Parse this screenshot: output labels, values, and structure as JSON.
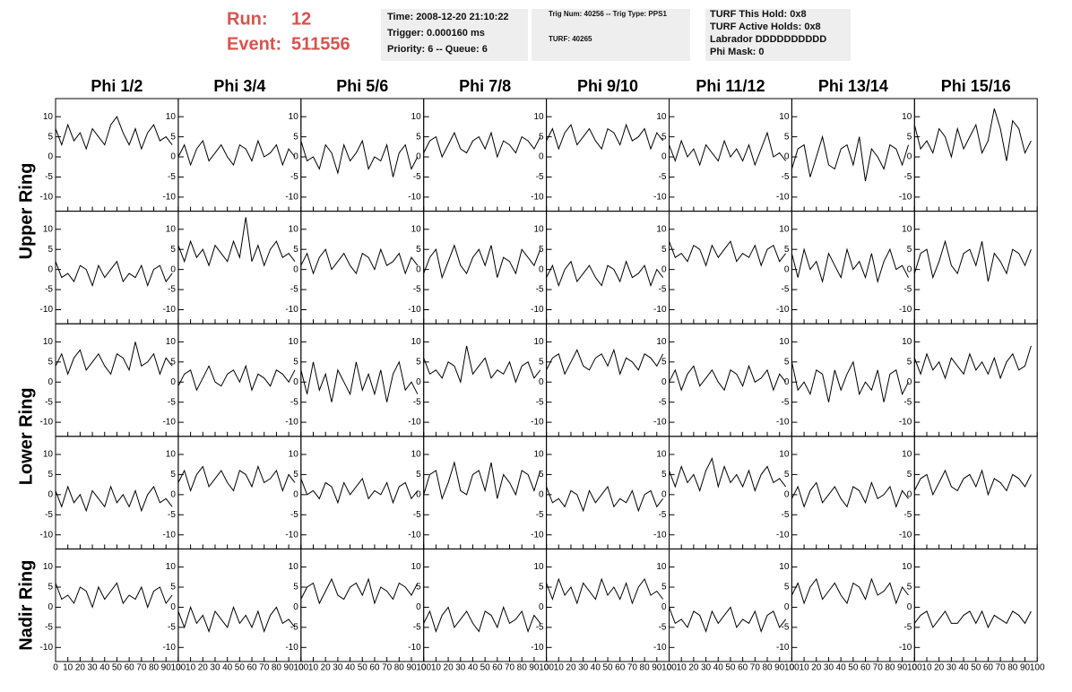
{
  "header": {
    "run_label": "Run:",
    "run": 12,
    "event_label": "Event:",
    "event": 511556,
    "time_box": [
      "Time: 2008-12-20 21:10:22",
      "Trigger: 0.000160 ms",
      "Priority: 6 -- Queue: 6"
    ],
    "trig_box": [
      "Trig Num: 40256 -- Trig Type: PPS1",
      "TURF: 40265"
    ],
    "turf_box": [
      "TURF This Hold: 0x8",
      "TURF Active Holds: 0x8",
      "Labrador DDDDDDDDDD",
      "Phi Mask: 0"
    ]
  },
  "chart_data": {
    "type": "line",
    "color": "#000000",
    "column_titles": [
      "Phi 1/2",
      "Phi 3/4",
      "Phi 5/6",
      "Phi 7/8",
      "Phi 9/10",
      "Phi 11/12",
      "Phi 13/14",
      "Phi 15/16"
    ],
    "row_titles": [
      "Upper Ring",
      "Lower Ring",
      "Nadir Ring"
    ],
    "x": [
      0,
      5,
      10,
      15,
      20,
      25,
      30,
      35,
      40,
      45,
      50,
      55,
      60,
      65,
      70,
      75,
      80,
      85,
      90,
      95
    ],
    "xlim": [
      0,
      100
    ],
    "xticks": [
      0,
      10,
      20,
      30,
      40,
      50,
      60,
      70,
      80,
      90,
      100
    ],
    "ylim": [
      -13.5,
      14.5
    ],
    "yticks": [
      -10,
      -5,
      0,
      5,
      10
    ],
    "panels": [
      [
        [
          7,
          3,
          8,
          4,
          6,
          2,
          7,
          5,
          3,
          8,
          10,
          6,
          3,
          7,
          2,
          6,
          8,
          4,
          5,
          3
        ],
        [
          0,
          3,
          -2,
          2,
          4,
          -1,
          1,
          3,
          0,
          -2,
          3,
          2,
          -1,
          4,
          0,
          1,
          3,
          -2,
          2,
          0
        ],
        [
          4,
          -1,
          0,
          -3,
          3,
          1,
          -4,
          3,
          -1,
          1,
          4,
          -3,
          0,
          -1,
          3,
          -5,
          1,
          3,
          -3,
          0
        ],
        [
          1,
          4,
          5,
          0,
          3,
          6,
          2,
          1,
          4,
          5,
          2,
          6,
          0,
          4,
          3,
          1,
          5,
          4,
          2,
          5
        ],
        [
          4,
          7,
          2,
          6,
          8,
          3,
          5,
          7,
          4,
          2,
          7,
          6,
          3,
          8,
          4,
          5,
          7,
          2,
          6,
          4
        ],
        [
          3,
          -1,
          4,
          0,
          2,
          -2,
          3,
          1,
          -1,
          4,
          0,
          2,
          -1,
          3,
          -2,
          2,
          6,
          0,
          1,
          -1
        ],
        [
          -3,
          2,
          3,
          -5,
          0,
          5,
          -2,
          -3,
          2,
          3,
          -2,
          5,
          -6,
          2,
          0,
          -3,
          3,
          2,
          -2,
          3
        ],
        [
          8,
          2,
          4,
          1,
          7,
          5,
          0,
          7,
          2,
          5,
          8,
          1,
          4,
          12,
          7,
          -1,
          9,
          7,
          1,
          4
        ]
      ],
      [
        [
          2,
          -2,
          -1,
          -3,
          1,
          0,
          -4,
          1,
          -2,
          0,
          2,
          -3,
          -1,
          -2,
          1,
          -4,
          0,
          1,
          -3,
          -1
        ],
        [
          6,
          2,
          7,
          3,
          5,
          1,
          6,
          4,
          2,
          7,
          3,
          13,
          2,
          6,
          1,
          5,
          7,
          3,
          4,
          2
        ],
        [
          1,
          4,
          -1,
          3,
          5,
          0,
          2,
          4,
          1,
          -1,
          4,
          3,
          0,
          5,
          1,
          2,
          4,
          -1,
          3,
          1
        ],
        [
          -1,
          3,
          5,
          -2,
          2,
          6,
          1,
          -1,
          3,
          5,
          1,
          6,
          -2,
          3,
          2,
          -1,
          5,
          3,
          1,
          5
        ],
        [
          -2,
          1,
          -4,
          0,
          2,
          -3,
          -1,
          1,
          -2,
          -4,
          1,
          0,
          -3,
          2,
          -2,
          -1,
          1,
          -4,
          0,
          -2
        ],
        [
          7,
          3,
          4,
          2,
          6,
          5,
          1,
          6,
          3,
          5,
          7,
          2,
          4,
          3,
          6,
          1,
          5,
          6,
          2,
          4
        ],
        [
          4,
          -2,
          5,
          0,
          2,
          -3,
          4,
          1,
          -2,
          5,
          0,
          2,
          -2,
          4,
          -3,
          2,
          5,
          0,
          1,
          -2
        ],
        [
          -1,
          4,
          5,
          -2,
          2,
          7,
          1,
          -1,
          4,
          5,
          1,
          7,
          -3,
          4,
          2,
          -1,
          5,
          4,
          1,
          5
        ]
      ],
      [
        [
          4,
          7,
          2,
          6,
          8,
          3,
          5,
          7,
          4,
          2,
          7,
          6,
          3,
          10,
          4,
          5,
          7,
          2,
          6,
          4
        ],
        [
          -1,
          2,
          3,
          -2,
          1,
          4,
          0,
          -1,
          2,
          3,
          0,
          4,
          -2,
          2,
          1,
          -1,
          3,
          2,
          0,
          3
        ],
        [
          3,
          -3,
          5,
          -2,
          2,
          -5,
          3,
          0,
          -3,
          5,
          -2,
          2,
          -3,
          3,
          -5,
          2,
          5,
          -2,
          0,
          -3
        ],
        [
          6,
          2,
          3,
          1,
          5,
          4,
          0,
          9,
          2,
          4,
          6,
          1,
          3,
          2,
          5,
          0,
          4,
          5,
          1,
          3
        ],
        [
          3,
          6,
          7,
          2,
          5,
          8,
          4,
          3,
          6,
          7,
          4,
          8,
          2,
          6,
          5,
          3,
          7,
          6,
          4,
          7
        ],
        [
          0,
          3,
          -2,
          2,
          4,
          -1,
          1,
          3,
          0,
          -2,
          3,
          2,
          -1,
          4,
          0,
          1,
          3,
          -2,
          2,
          0
        ],
        [
          5,
          -2,
          0,
          -3,
          3,
          2,
          -5,
          3,
          -2,
          2,
          5,
          -3,
          0,
          -2,
          3,
          -5,
          2,
          3,
          -3,
          0
        ],
        [
          6,
          2,
          7,
          3,
          5,
          1,
          6,
          4,
          2,
          7,
          3,
          5,
          2,
          6,
          1,
          5,
          7,
          3,
          4,
          9
        ]
      ],
      [
        [
          1,
          -3,
          2,
          -2,
          0,
          -4,
          1,
          -1,
          -3,
          2,
          -2,
          0,
          -3,
          1,
          -4,
          0,
          2,
          -2,
          -1,
          -3
        ],
        [
          3,
          6,
          1,
          5,
          7,
          2,
          4,
          6,
          3,
          1,
          6,
          5,
          2,
          7,
          3,
          4,
          6,
          1,
          5,
          3
        ],
        [
          4,
          0,
          1,
          -1,
          3,
          2,
          -2,
          3,
          0,
          2,
          4,
          -1,
          1,
          0,
          3,
          -2,
          2,
          3,
          -1,
          1
        ],
        [
          0,
          5,
          6,
          -1,
          3,
          8,
          1,
          0,
          5,
          6,
          1,
          8,
          -1,
          5,
          3,
          0,
          6,
          5,
          1,
          6
        ],
        [
          2,
          -2,
          -1,
          -3,
          1,
          0,
          -4,
          1,
          -2,
          0,
          2,
          -3,
          -1,
          -2,
          1,
          -4,
          0,
          1,
          -3,
          -1
        ],
        [
          6,
          2,
          7,
          3,
          5,
          1,
          6,
          9,
          2,
          7,
          3,
          5,
          2,
          6,
          1,
          5,
          7,
          3,
          4,
          2
        ],
        [
          -1,
          2,
          -3,
          1,
          3,
          -2,
          0,
          2,
          -1,
          -3,
          2,
          1,
          -2,
          3,
          -1,
          0,
          2,
          -3,
          1,
          -1
        ],
        [
          1,
          4,
          5,
          0,
          3,
          6,
          2,
          1,
          4,
          5,
          2,
          6,
          0,
          4,
          3,
          1,
          5,
          4,
          2,
          5
        ]
      ],
      [
        [
          6,
          2,
          3,
          1,
          5,
          4,
          0,
          5,
          2,
          4,
          6,
          1,
          3,
          2,
          5,
          0,
          4,
          5,
          1,
          3
        ],
        [
          -1,
          -5,
          0,
          -4,
          -2,
          -6,
          -1,
          -3,
          -5,
          0,
          -4,
          -2,
          -5,
          -1,
          -6,
          -2,
          0,
          -4,
          -3,
          -5
        ],
        [
          2,
          5,
          6,
          1,
          4,
          7,
          3,
          2,
          5,
          6,
          3,
          7,
          1,
          5,
          4,
          2,
          6,
          5,
          3,
          6
        ],
        [
          -4,
          -1,
          -6,
          -2,
          0,
          -5,
          -3,
          -1,
          -4,
          -6,
          -1,
          -2,
          -5,
          0,
          -4,
          -3,
          -1,
          -6,
          -2,
          -4
        ],
        [
          6,
          2,
          7,
          3,
          5,
          1,
          6,
          4,
          2,
          7,
          3,
          5,
          2,
          6,
          1,
          5,
          7,
          3,
          4,
          2
        ],
        [
          0,
          -4,
          -3,
          -5,
          -1,
          -2,
          -6,
          -1,
          -4,
          -2,
          0,
          -5,
          -3,
          -4,
          -1,
          -6,
          -2,
          -1,
          -5,
          -3
        ],
        [
          3,
          6,
          1,
          5,
          7,
          2,
          4,
          6,
          3,
          1,
          6,
          5,
          2,
          7,
          3,
          4,
          6,
          1,
          5,
          3
        ],
        [
          -4,
          -2,
          -1,
          -5,
          -3,
          -1,
          -4,
          -4,
          -2,
          -1,
          -4,
          -1,
          -5,
          -2,
          -3,
          -4,
          -1,
          -2,
          -4,
          -1
        ]
      ]
    ]
  }
}
